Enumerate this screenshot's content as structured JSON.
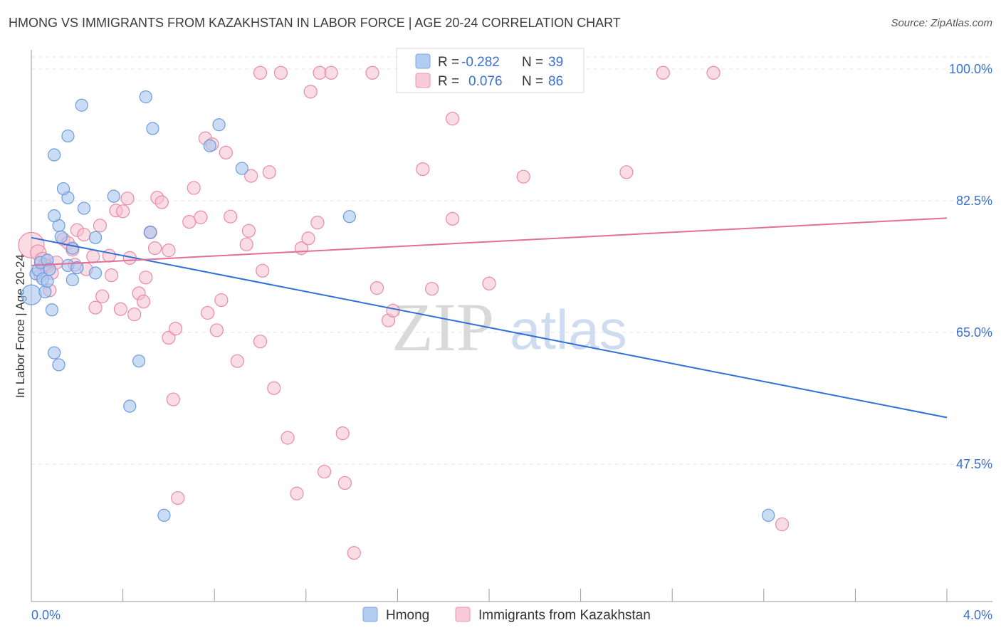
{
  "title": "HMONG VS IMMIGRANTS FROM KAZAKHSTAN IN LABOR FORCE | AGE 20-24 CORRELATION CHART",
  "source": "Source: ZipAtlas.com",
  "watermark": {
    "bold": "ZIP",
    "light": "atlas"
  },
  "colors": {
    "hmong_fill": "#a9c6ef",
    "hmong_stroke": "#6b9be0",
    "hmong_line": "#2f6fd6",
    "kaz_fill": "#f6bfd0",
    "kaz_stroke": "#e98aa9",
    "kaz_line": "#e0709a",
    "axis_label": "#3b6fd0",
    "grid": "#e3e3e3"
  },
  "legend": {
    "rows": [
      {
        "r_label": "R =",
        "r_value": "-0.282",
        "n_label": "N =",
        "n_value": "39"
      },
      {
        "r_label": "R =",
        "r_value": "0.076",
        "n_label": "N =",
        "n_value": "86"
      }
    ]
  },
  "chart_data": {
    "type": "scatter",
    "title": "HMONG VS IMMIGRANTS FROM KAZAKHSTAN IN LABOR FORCE | AGE 20-24 CORRELATION CHART",
    "xlabel": "",
    "ylabel": "In Labor Force | Age 20-24",
    "xlim": [
      0.0,
      4.0
    ],
    "ylim": [
      30.5,
      101.5
    ],
    "x_tick_labels": [
      "0.0%",
      "4.0%"
    ],
    "y_ticks": [
      47.5,
      65.0,
      82.5,
      100.0
    ],
    "y_tick_labels": [
      "47.5%",
      "65.0%",
      "82.5%",
      "100.0%"
    ],
    "grid": true,
    "legend_position": "top-center",
    "series": [
      {
        "name": "Hmong",
        "r": -0.282,
        "n": 39,
        "trend": {
          "x0": 0.0,
          "y0": 77.6,
          "x1": 4.0,
          "y1": 53.7
        },
        "points": [
          [
            0.0,
            70.0
          ],
          [
            0.02,
            72.8
          ],
          [
            0.03,
            73.3
          ],
          [
            0.04,
            74.3
          ],
          [
            0.05,
            72.1
          ],
          [
            0.06,
            70.4
          ],
          [
            0.07,
            74.6
          ],
          [
            0.08,
            73.4
          ],
          [
            0.09,
            68.0
          ],
          [
            0.1,
            62.3
          ],
          [
            0.12,
            60.7
          ],
          [
            0.12,
            79.2
          ],
          [
            0.1,
            88.6
          ],
          [
            0.16,
            73.9
          ],
          [
            0.18,
            76.2
          ],
          [
            0.18,
            72.0
          ],
          [
            0.13,
            77.7
          ],
          [
            0.1,
            80.5
          ],
          [
            0.16,
            82.9
          ],
          [
            0.14,
            84.1
          ],
          [
            0.16,
            91.1
          ],
          [
            0.22,
            95.2
          ],
          [
            0.23,
            81.5
          ],
          [
            0.28,
            77.6
          ],
          [
            0.28,
            72.9
          ],
          [
            0.36,
            83.1
          ],
          [
            0.43,
            55.2
          ],
          [
            0.47,
            61.2
          ],
          [
            0.5,
            96.3
          ],
          [
            0.52,
            78.3
          ],
          [
            0.53,
            92.1
          ],
          [
            0.58,
            40.7
          ],
          [
            0.78,
            89.8
          ],
          [
            0.82,
            92.6
          ],
          [
            0.92,
            86.8
          ],
          [
            1.39,
            80.4
          ],
          [
            3.22,
            40.7
          ],
          [
            0.2,
            73.6
          ],
          [
            0.07,
            71.8
          ]
        ]
      },
      {
        "name": "Immigrants from Kazakhstan",
        "r": 0.076,
        "n": 86,
        "trend": {
          "x0": 0.0,
          "y0": 73.9,
          "x1": 4.0,
          "y1": 80.2
        },
        "points": [
          [
            0.0,
            76.6
          ],
          [
            0.03,
            75.6
          ],
          [
            0.05,
            74.6
          ],
          [
            0.07,
            73.8
          ],
          [
            0.09,
            72.9
          ],
          [
            0.08,
            70.6
          ],
          [
            0.11,
            74.3
          ],
          [
            0.14,
            77.4
          ],
          [
            0.16,
            76.9
          ],
          [
            0.18,
            76.0
          ],
          [
            0.19,
            74.0
          ],
          [
            0.2,
            78.6
          ],
          [
            0.23,
            78.0
          ],
          [
            0.24,
            73.4
          ],
          [
            0.27,
            75.1
          ],
          [
            0.28,
            68.3
          ],
          [
            0.3,
            79.2
          ],
          [
            0.31,
            69.8
          ],
          [
            0.34,
            75.2
          ],
          [
            0.35,
            72.6
          ],
          [
            0.37,
            81.2
          ],
          [
            0.39,
            68.1
          ],
          [
            0.4,
            81.1
          ],
          [
            0.42,
            82.8
          ],
          [
            0.43,
            74.9
          ],
          [
            0.45,
            67.4
          ],
          [
            0.47,
            70.2
          ],
          [
            0.49,
            69.1
          ],
          [
            0.5,
            72.3
          ],
          [
            0.52,
            78.3
          ],
          [
            0.54,
            76.2
          ],
          [
            0.55,
            82.9
          ],
          [
            0.57,
            82.3
          ],
          [
            0.6,
            75.9
          ],
          [
            0.6,
            64.3
          ],
          [
            0.63,
            65.5
          ],
          [
            0.62,
            56.1
          ],
          [
            0.64,
            43.0
          ],
          [
            0.69,
            79.7
          ],
          [
            0.71,
            84.2
          ],
          [
            0.74,
            80.3
          ],
          [
            0.76,
            90.8
          ],
          [
            0.77,
            67.6
          ],
          [
            0.79,
            90.0
          ],
          [
            0.81,
            65.3
          ],
          [
            0.83,
            69.3
          ],
          [
            0.85,
            88.9
          ],
          [
            0.87,
            80.4
          ],
          [
            0.9,
            61.2
          ],
          [
            0.94,
            76.7
          ],
          [
            0.95,
            78.5
          ],
          [
            0.96,
            85.8
          ],
          [
            1.0,
            63.8
          ],
          [
            1.0,
            99.5
          ],
          [
            1.01,
            73.2
          ],
          [
            1.04,
            86.3
          ],
          [
            1.06,
            57.6
          ],
          [
            1.09,
            99.5
          ],
          [
            1.12,
            51.0
          ],
          [
            1.16,
            43.6
          ],
          [
            1.18,
            76.2
          ],
          [
            1.21,
            77.5
          ],
          [
            1.22,
            97.0
          ],
          [
            1.25,
            79.6
          ],
          [
            1.26,
            99.5
          ],
          [
            1.28,
            46.5
          ],
          [
            1.31,
            99.5
          ],
          [
            1.36,
            51.6
          ],
          [
            1.37,
            45.0
          ],
          [
            1.41,
            35.7
          ],
          [
            1.49,
            99.5
          ],
          [
            1.51,
            70.9
          ],
          [
            1.56,
            66.6
          ],
          [
            1.58,
            67.9
          ],
          [
            1.71,
            86.7
          ],
          [
            1.75,
            70.8
          ],
          [
            1.84,
            93.4
          ],
          [
            1.84,
            80.1
          ],
          [
            2.0,
            71.5
          ],
          [
            2.15,
            85.7
          ],
          [
            2.6,
            86.3
          ],
          [
            2.76,
            99.5
          ],
          [
            2.98,
            99.5
          ],
          [
            3.28,
            39.5
          ],
          [
            0.06,
            74.0
          ],
          [
            0.04,
            72.6
          ]
        ]
      }
    ]
  },
  "bottom_legend": {
    "items": [
      {
        "label": "Hmong"
      },
      {
        "label": "Immigrants from Kazakhstan"
      }
    ]
  }
}
